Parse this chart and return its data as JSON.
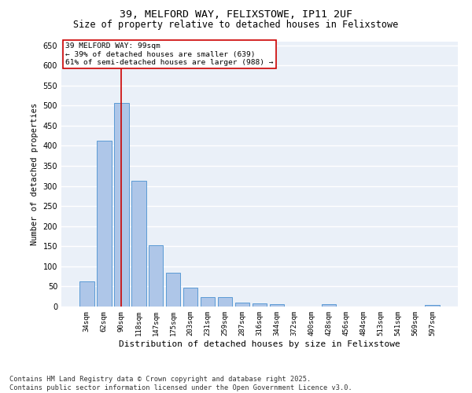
{
  "title_line1": "39, MELFORD WAY, FELIXSTOWE, IP11 2UF",
  "title_line2": "Size of property relative to detached houses in Felixstowe",
  "xlabel": "Distribution of detached houses by size in Felixstowe",
  "ylabel": "Number of detached properties",
  "categories": [
    "34sqm",
    "62sqm",
    "90sqm",
    "118sqm",
    "147sqm",
    "175sqm",
    "203sqm",
    "231sqm",
    "259sqm",
    "287sqm",
    "316sqm",
    "344sqm",
    "372sqm",
    "400sqm",
    "428sqm",
    "456sqm",
    "484sqm",
    "513sqm",
    "541sqm",
    "569sqm",
    "597sqm"
  ],
  "values": [
    62,
    412,
    507,
    313,
    153,
    85,
    47,
    23,
    24,
    10,
    8,
    6,
    0,
    0,
    5,
    0,
    0,
    0,
    0,
    0,
    4
  ],
  "bar_color": "#aec6e8",
  "bar_edge_color": "#5b9bd5",
  "vline_x": 2,
  "vline_color": "#cc0000",
  "annotation_text": "39 MELFORD WAY: 99sqm\n← 39% of detached houses are smaller (639)\n61% of semi-detached houses are larger (988) →",
  "annotation_box_color": "#ffffff",
  "annotation_box_edge_color": "#cc0000",
  "ylim": [
    0,
    660
  ],
  "yticks": [
    0,
    50,
    100,
    150,
    200,
    250,
    300,
    350,
    400,
    450,
    500,
    550,
    600,
    650
  ],
  "background_color": "#eaf0f8",
  "grid_color": "#ffffff",
  "footer_line1": "Contains HM Land Registry data © Crown copyright and database right 2025.",
  "footer_line2": "Contains public sector information licensed under the Open Government Licence v3.0.",
  "title_fontsize": 9.5,
  "subtitle_fontsize": 8.5,
  "annotation_fontsize": 6.8,
  "ylabel_fontsize": 7.5,
  "xlabel_fontsize": 8,
  "footer_fontsize": 6.2,
  "tick_fontsize": 6.5,
  "ytick_fontsize": 7
}
